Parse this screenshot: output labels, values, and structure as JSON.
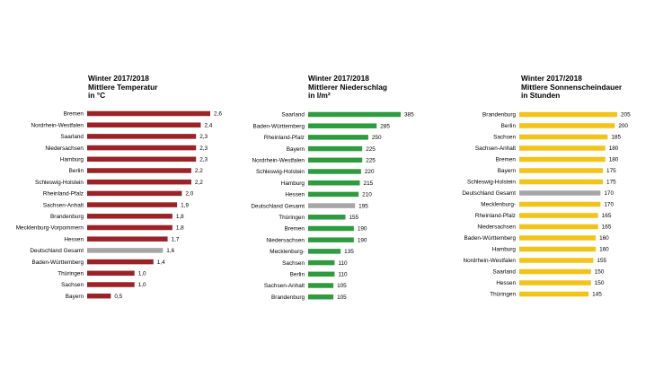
{
  "chart_data": [
    {
      "type": "bar",
      "orientation": "horizontal",
      "title_lines": [
        "Winter 2017/2018",
        "Mittlere Temperatur",
        "in °C"
      ],
      "color": "#9b2226",
      "highlight_color": "#a6a6a6",
      "highlight_category": "Deutschland Gesamt",
      "categories": [
        "Bremen",
        "Nordrhein-Westfalen",
        "Saarland",
        "Niedersachsen",
        "Hamburg",
        "Berlin",
        "Schleswig-Holstein",
        "Rheinland-Pfalz",
        "Sachsen-Anhalt",
        "Brandenburg",
        "Mecklenburg-Vorpommern",
        "Hessen",
        "Deutschland Gesamt",
        "Baden-Württemberg",
        "Thüringen",
        "Sachsen",
        "Bayern"
      ],
      "values": [
        2.6,
        2.4,
        2.3,
        2.3,
        2.3,
        2.2,
        2.2,
        2.0,
        1.9,
        1.8,
        1.8,
        1.7,
        1.6,
        1.4,
        1.0,
        1.0,
        0.5
      ],
      "value_labels": [
        "2,6",
        "2,4",
        "2,3",
        "2,3",
        "2,3",
        "2,2",
        "2,2",
        "2,0",
        "1,9",
        "1,8",
        "1,8",
        "1,7",
        "1,6",
        "1,4",
        "1,0",
        "1,0",
        "0,5"
      ],
      "xlim": [
        0,
        2.6
      ]
    },
    {
      "type": "bar",
      "orientation": "horizontal",
      "title_lines": [
        "Winter 2017/2018",
        "Mittlerer Niederschlag",
        "in l/m²"
      ],
      "color": "#2e9b3f",
      "highlight_color": "#a6a6a6",
      "highlight_category": "Deutschland Gesamt",
      "categories": [
        "Saarland",
        "Baden-Württemberg",
        "Rheinland-Pfalz",
        "Bayern",
        "Nordrhein-Westfalen",
        "Schleswig-Holstein",
        "Hamburg",
        "Hessen",
        "Deutschland Gesamt",
        "Thüringen",
        "Bremen",
        "Niedersachsen",
        "Mecklenburg-",
        "Sachsen",
        "Berlin",
        "Sachsen-Anhalt",
        "Brandenburg"
      ],
      "values": [
        385,
        285,
        250,
        225,
        225,
        220,
        215,
        210,
        195,
        155,
        190,
        190,
        135,
        110,
        110,
        105,
        105
      ],
      "value_labels": [
        "385",
        "285",
        "250",
        "225",
        "225",
        "220",
        "215",
        "210",
        "195",
        "155",
        "190",
        "190",
        "135",
        "110",
        "110",
        "105",
        "105"
      ],
      "xlim": [
        0,
        385
      ]
    },
    {
      "type": "bar",
      "orientation": "horizontal",
      "title_lines": [
        "Winter 2017/2018",
        "Mittlere Sonnenscheindauer",
        "in Stunden"
      ],
      "color": "#f2c318",
      "highlight_color": "#a6a6a6",
      "highlight_category": "Deutschland Gesamt",
      "categories": [
        "Brandenburg",
        "Berlin",
        "Sachsen",
        "Sachsen-Anhalt",
        "Bremen",
        "Bayern",
        "Schleswig-Holstein",
        "Deutschland Gesamt",
        "Mecklenburg-",
        "Rheinland-Pfalz",
        "Niedersachsen",
        "Baden-Württemberg",
        "Hamburg",
        "Nordrhein-Westfalen",
        "Saarland",
        "Hessen",
        "Thüringen"
      ],
      "values": [
        205,
        200,
        185,
        180,
        180,
        175,
        175,
        170,
        170,
        165,
        165,
        160,
        160,
        155,
        150,
        150,
        145
      ],
      "value_labels": [
        "205",
        "200",
        "185",
        "180",
        "180",
        "175",
        "175",
        "170",
        "170",
        "165",
        "165",
        "160",
        "160",
        "155",
        "150",
        "150",
        "145"
      ],
      "xlim": [
        0,
        205
      ]
    }
  ]
}
